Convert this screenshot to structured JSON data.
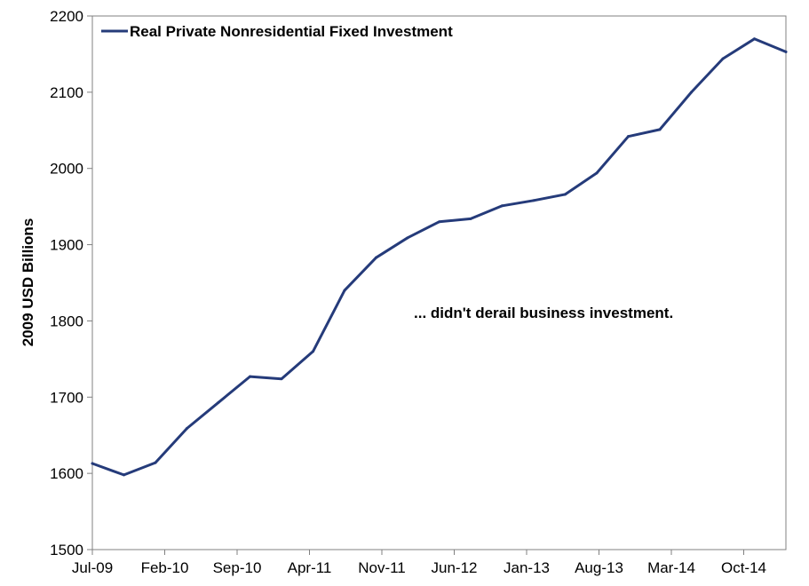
{
  "chart_data": {
    "type": "line",
    "title": "",
    "xlabel": "",
    "ylabel": "2009 USD Billions",
    "ylim": [
      1500,
      2200
    ],
    "y_ticks": [
      "1500",
      "1600",
      "1700",
      "1800",
      "1900",
      "2000",
      "2100",
      "2200"
    ],
    "x_tick_labels": [
      "Jul-09",
      "Feb-10",
      "Sep-10",
      "Apr-11",
      "Nov-11",
      "Jun-12",
      "Jan-13",
      "Aug-13",
      "Mar-14",
      "Oct-14"
    ],
    "x": [
      "Jul-09",
      "Oct-09",
      "Jan-10",
      "Apr-10",
      "Jul-10",
      "Oct-10",
      "Jan-11",
      "Apr-11",
      "Jul-11",
      "Oct-11",
      "Jan-12",
      "Apr-12",
      "Jul-12",
      "Oct-12",
      "Jan-13",
      "Apr-13",
      "Jul-13",
      "Oct-13",
      "Jan-14",
      "Apr-14",
      "Jul-14",
      "Oct-14",
      "Jan-15"
    ],
    "series": [
      {
        "name": "Real Private Nonresidential Fixed Investment",
        "color": "#253B7A",
        "values": [
          1613,
          1598,
          1614,
          1659,
          1693,
          1727,
          1724,
          1760,
          1840,
          1883,
          1909,
          1930,
          1934,
          1951,
          1958,
          1966,
          1994,
          2042,
          2051,
          2100,
          2144,
          2170,
          2153
        ]
      }
    ],
    "grid": false,
    "legend": "top-left",
    "annotation": "... didn't derail business investment."
  }
}
